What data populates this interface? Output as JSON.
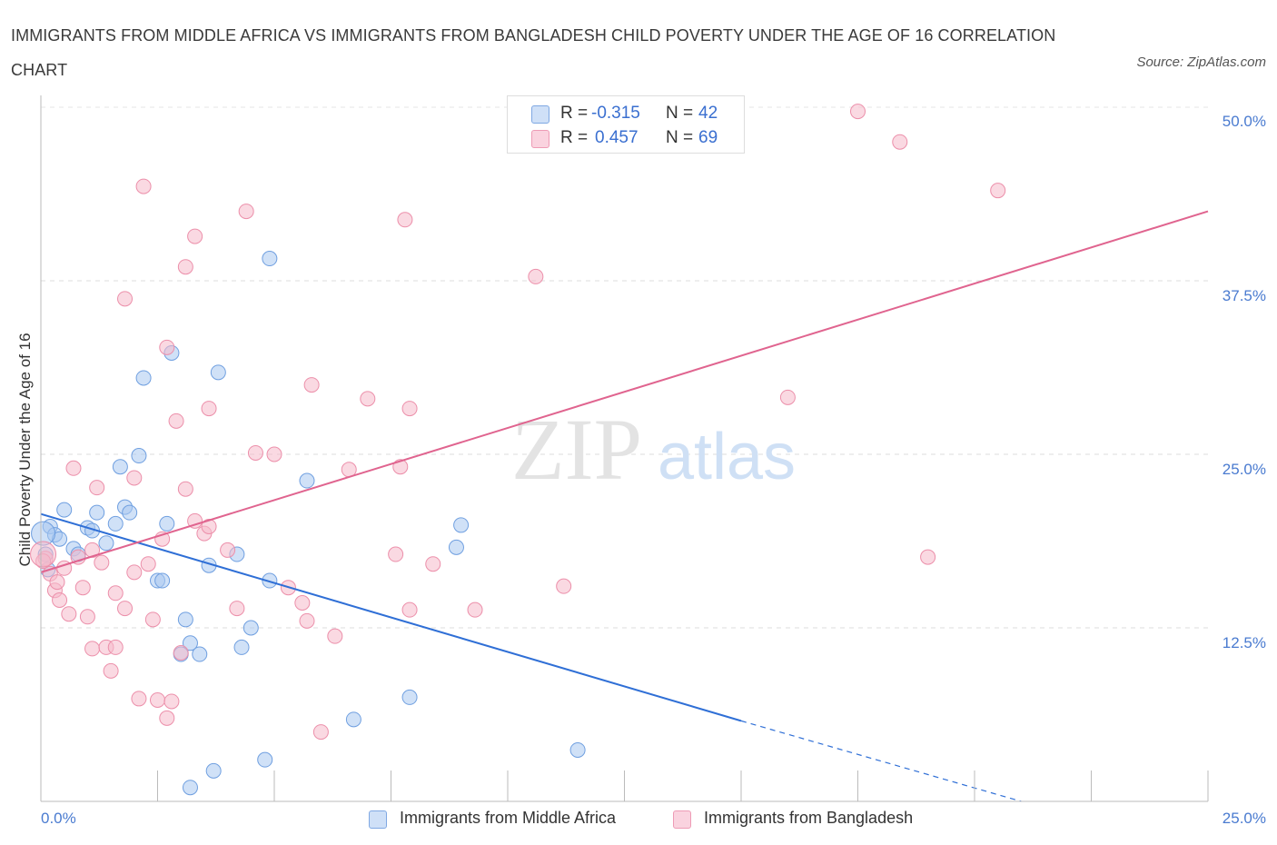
{
  "title": "IMMIGRANTS FROM MIDDLE AFRICA VS IMMIGRANTS FROM BANGLADESH CHILD POVERTY UNDER THE AGE OF 16 CORRELATION CHART",
  "source": "Source: ZipAtlas.com",
  "watermark": {
    "zip": "ZIP",
    "atlas": "atlas"
  },
  "legend_top": {
    "rows": [
      {
        "r_label": "R =",
        "r_value": "-0.315",
        "n_label": "N =",
        "n_value": "42",
        "color": "#a9c8f0"
      },
      {
        "r_label": "R =",
        "r_value": "0.457",
        "n_label": "N =",
        "n_value": "69",
        "color": "#f5b9cb"
      }
    ]
  },
  "legend_bottom": {
    "items": [
      {
        "label": "Immigrants from Middle Africa",
        "color": "#a9c8f0"
      },
      {
        "label": "Immigrants from Bangladesh",
        "color": "#f5b9cb"
      }
    ]
  },
  "chart_data": {
    "type": "scatter",
    "title": "IMMIGRANTS FROM MIDDLE AFRICA VS IMMIGRANTS FROM BANGLADESH CHILD POVERTY UNDER THE AGE OF 16 CORRELATION CHART",
    "xlabel": "",
    "ylabel": "Child Poverty Under the Age of 16",
    "xlim": [
      0,
      25
    ],
    "ylim": [
      0,
      50
    ],
    "x_tick_labels": [
      "0.0%",
      "25.0%"
    ],
    "y_tick_labels": [
      "12.5%",
      "25.0%",
      "37.5%",
      "50.0%"
    ],
    "y_ticks": [
      12.5,
      25.0,
      37.5,
      50.0
    ],
    "grid": true,
    "legend_position": "top-center",
    "series": [
      {
        "name": "Immigrants from Middle Africa",
        "color": "#a9c8f0",
        "stroke": "#6f9fe0",
        "line_color": "#2f6fd6",
        "trend": {
          "x0": 0,
          "y0": 20.7,
          "x1": 15,
          "y1": 5.8,
          "dashed_to_x": 21,
          "dashed_to_y": 0
        },
        "points": [
          [
            0.2,
            19.8
          ],
          [
            0.3,
            19.2
          ],
          [
            0.4,
            18.9
          ],
          [
            0.5,
            21.0
          ],
          [
            0.7,
            18.2
          ],
          [
            0.8,
            17.8
          ],
          [
            1.0,
            19.7
          ],
          [
            1.1,
            19.5
          ],
          [
            1.2,
            20.8
          ],
          [
            1.4,
            18.6
          ],
          [
            1.6,
            20.0
          ],
          [
            1.7,
            24.1
          ],
          [
            1.8,
            21.2
          ],
          [
            1.9,
            20.8
          ],
          [
            2.1,
            24.9
          ],
          [
            2.2,
            30.5
          ],
          [
            2.5,
            15.9
          ],
          [
            2.6,
            15.9
          ],
          [
            2.7,
            20.0
          ],
          [
            2.8,
            32.3
          ],
          [
            3.0,
            10.6
          ],
          [
            3.1,
            13.1
          ],
          [
            3.2,
            11.4
          ],
          [
            3.4,
            10.6
          ],
          [
            3.6,
            17.0
          ],
          [
            3.8,
            30.9
          ],
          [
            4.2,
            17.8
          ],
          [
            4.3,
            11.1
          ],
          [
            4.5,
            12.5
          ],
          [
            4.8,
            3.0
          ],
          [
            4.9,
            15.9
          ],
          [
            4.9,
            39.1
          ],
          [
            5.7,
            23.1
          ],
          [
            6.7,
            5.9
          ],
          [
            7.9,
            7.5
          ],
          [
            8.9,
            18.3
          ],
          [
            9.0,
            19.9
          ],
          [
            11.5,
            3.7
          ],
          [
            3.2,
            1.0
          ],
          [
            3.7,
            2.2
          ],
          [
            0.1,
            17.8
          ],
          [
            0.15,
            16.7
          ]
        ]
      },
      {
        "name": "Immigrants from Bangladesh",
        "color": "#f5b9cb",
        "stroke": "#ec8faa",
        "line_color": "#e0648f",
        "trend": {
          "x0": 0,
          "y0": 16.5,
          "x1": 25,
          "y1": 42.5
        },
        "points": [
          [
            0.1,
            17.5
          ],
          [
            0.2,
            16.4
          ],
          [
            0.3,
            15.2
          ],
          [
            0.35,
            15.8
          ],
          [
            0.4,
            14.5
          ],
          [
            0.5,
            16.8
          ],
          [
            0.6,
            13.5
          ],
          [
            0.7,
            24.0
          ],
          [
            0.8,
            17.6
          ],
          [
            0.9,
            15.4
          ],
          [
            1.0,
            13.3
          ],
          [
            1.1,
            18.1
          ],
          [
            1.1,
            11.0
          ],
          [
            1.2,
            22.6
          ],
          [
            1.3,
            17.2
          ],
          [
            1.4,
            11.1
          ],
          [
            1.5,
            9.4
          ],
          [
            1.6,
            15.0
          ],
          [
            1.6,
            11.1
          ],
          [
            1.8,
            13.9
          ],
          [
            1.8,
            36.2
          ],
          [
            2.0,
            16.5
          ],
          [
            2.0,
            23.3
          ],
          [
            2.1,
            7.4
          ],
          [
            2.2,
            44.3
          ],
          [
            2.3,
            17.1
          ],
          [
            2.4,
            13.1
          ],
          [
            2.5,
            7.3
          ],
          [
            2.6,
            18.9
          ],
          [
            2.7,
            6.0
          ],
          [
            2.7,
            32.7
          ],
          [
            2.8,
            7.2
          ],
          [
            2.9,
            27.4
          ],
          [
            3.0,
            10.7
          ],
          [
            3.1,
            38.5
          ],
          [
            3.1,
            22.5
          ],
          [
            3.3,
            20.2
          ],
          [
            3.3,
            40.7
          ],
          [
            3.5,
            19.3
          ],
          [
            3.6,
            19.8
          ],
          [
            3.6,
            28.3
          ],
          [
            4.0,
            18.1
          ],
          [
            4.2,
            13.9
          ],
          [
            4.4,
            42.5
          ],
          [
            4.6,
            25.1
          ],
          [
            5.0,
            25.0
          ],
          [
            5.3,
            15.4
          ],
          [
            5.6,
            14.3
          ],
          [
            5.7,
            13.0
          ],
          [
            5.8,
            30.0
          ],
          [
            6.0,
            5.0
          ],
          [
            6.3,
            11.9
          ],
          [
            6.6,
            23.9
          ],
          [
            7.0,
            29.0
          ],
          [
            7.6,
            17.8
          ],
          [
            7.7,
            24.1
          ],
          [
            7.8,
            41.9
          ],
          [
            7.9,
            13.8
          ],
          [
            7.9,
            28.3
          ],
          [
            8.4,
            17.1
          ],
          [
            9.3,
            13.8
          ],
          [
            10.6,
            37.8
          ],
          [
            11.2,
            15.5
          ],
          [
            16.0,
            29.1
          ],
          [
            17.5,
            49.7
          ],
          [
            18.4,
            47.5
          ],
          [
            20.5,
            44.0
          ],
          [
            19.0,
            17.6
          ],
          [
            0.05,
            17.3
          ]
        ]
      }
    ]
  }
}
